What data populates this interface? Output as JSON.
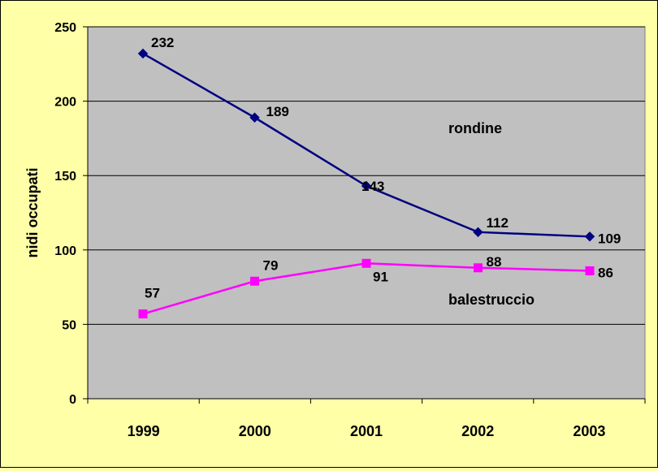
{
  "chart_data": {
    "type": "line",
    "categories": [
      "1999",
      "2000",
      "2001",
      "2002",
      "2003"
    ],
    "ylabel": "nidi occupati",
    "xlabel": "",
    "ylim": [
      0,
      250
    ],
    "yticks": [
      0,
      50,
      100,
      150,
      200,
      250
    ],
    "grid": true,
    "plot_background": "#C0C0C0",
    "page_background": "#FFFFA8",
    "series": [
      {
        "name": "rondine",
        "values": [
          232,
          189,
          143,
          112,
          109
        ],
        "color": "#000080",
        "marker": "diamond"
      },
      {
        "name": "balestruccio",
        "values": [
          57,
          79,
          91,
          88,
          86
        ],
        "color": "#FF00FF",
        "marker": "square"
      }
    ]
  }
}
